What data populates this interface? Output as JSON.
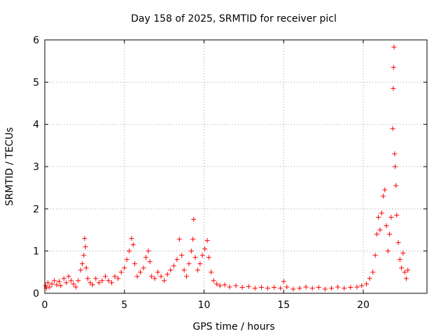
{
  "chart_data": {
    "type": "scatter",
    "title": "Day 158 of 2025, SRMTID for receiver picl",
    "xlabel": "GPS time / hours",
    "ylabel": "SRMTID / TECUs",
    "xlim": [
      0,
      24
    ],
    "ylim": [
      0,
      6
    ],
    "x_ticks": [
      0,
      5,
      10,
      15,
      20
    ],
    "x_tick_labels": [
      "0",
      "5",
      "10",
      "15",
      "20"
    ],
    "y_ticks": [
      0,
      1,
      2,
      3,
      4,
      5,
      6
    ],
    "y_tick_labels": [
      "0",
      "1",
      "2",
      "3",
      "4",
      "5",
      "6"
    ],
    "grid": true,
    "marker": "+",
    "series": [
      {
        "name": "SRMTID",
        "color": "#ff0000",
        "points": [
          [
            0.05,
            0.18
          ],
          [
            0.1,
            0.12
          ],
          [
            0.2,
            0.25
          ],
          [
            0.3,
            0.15
          ],
          [
            0.45,
            0.22
          ],
          [
            0.6,
            0.3
          ],
          [
            0.75,
            0.2
          ],
          [
            0.9,
            0.28
          ],
          [
            1.0,
            0.18
          ],
          [
            1.2,
            0.35
          ],
          [
            1.35,
            0.25
          ],
          [
            1.5,
            0.4
          ],
          [
            1.65,
            0.3
          ],
          [
            1.8,
            0.22
          ],
          [
            1.95,
            0.15
          ],
          [
            2.1,
            0.3
          ],
          [
            2.25,
            0.55
          ],
          [
            2.35,
            0.7
          ],
          [
            2.45,
            0.9
          ],
          [
            2.5,
            1.3
          ],
          [
            2.55,
            1.1
          ],
          [
            2.6,
            0.6
          ],
          [
            2.7,
            0.35
          ],
          [
            2.85,
            0.25
          ],
          [
            3.0,
            0.2
          ],
          [
            3.2,
            0.35
          ],
          [
            3.4,
            0.25
          ],
          [
            3.6,
            0.3
          ],
          [
            3.8,
            0.4
          ],
          [
            4.0,
            0.3
          ],
          [
            4.2,
            0.25
          ],
          [
            4.4,
            0.4
          ],
          [
            4.6,
            0.35
          ],
          [
            4.8,
            0.5
          ],
          [
            5.0,
            0.6
          ],
          [
            5.15,
            0.8
          ],
          [
            5.3,
            1.0
          ],
          [
            5.45,
            1.3
          ],
          [
            5.55,
            1.15
          ],
          [
            5.65,
            0.7
          ],
          [
            5.8,
            0.4
          ],
          [
            6.0,
            0.5
          ],
          [
            6.2,
            0.6
          ],
          [
            6.35,
            0.85
          ],
          [
            6.5,
            1.0
          ],
          [
            6.6,
            0.75
          ],
          [
            6.7,
            0.4
          ],
          [
            6.9,
            0.35
          ],
          [
            7.1,
            0.5
          ],
          [
            7.3,
            0.4
          ],
          [
            7.5,
            0.3
          ],
          [
            7.7,
            0.45
          ],
          [
            7.9,
            0.55
          ],
          [
            8.1,
            0.65
          ],
          [
            8.3,
            0.8
          ],
          [
            8.45,
            1.28
          ],
          [
            8.6,
            0.9
          ],
          [
            8.75,
            0.55
          ],
          [
            8.9,
            0.4
          ],
          [
            9.05,
            0.7
          ],
          [
            9.2,
            1.0
          ],
          [
            9.3,
            1.28
          ],
          [
            9.35,
            1.75
          ],
          [
            9.45,
            0.85
          ],
          [
            9.6,
            0.55
          ],
          [
            9.75,
            0.7
          ],
          [
            9.9,
            0.9
          ],
          [
            10.05,
            1.05
          ],
          [
            10.2,
            1.25
          ],
          [
            10.3,
            0.85
          ],
          [
            10.45,
            0.5
          ],
          [
            10.6,
            0.3
          ],
          [
            10.8,
            0.22
          ],
          [
            11.0,
            0.18
          ],
          [
            11.3,
            0.2
          ],
          [
            11.6,
            0.15
          ],
          [
            12.0,
            0.18
          ],
          [
            12.4,
            0.14
          ],
          [
            12.8,
            0.16
          ],
          [
            13.2,
            0.12
          ],
          [
            13.6,
            0.14
          ],
          [
            14.0,
            0.12
          ],
          [
            14.4,
            0.14
          ],
          [
            14.8,
            0.12
          ],
          [
            15.0,
            0.28
          ],
          [
            15.2,
            0.15
          ],
          [
            15.6,
            0.1
          ],
          [
            16.0,
            0.12
          ],
          [
            16.4,
            0.15
          ],
          [
            16.8,
            0.12
          ],
          [
            17.2,
            0.14
          ],
          [
            17.6,
            0.1
          ],
          [
            18.0,
            0.12
          ],
          [
            18.4,
            0.15
          ],
          [
            18.8,
            0.12
          ],
          [
            19.2,
            0.14
          ],
          [
            19.6,
            0.15
          ],
          [
            19.9,
            0.18
          ],
          [
            20.2,
            0.22
          ],
          [
            20.4,
            0.35
          ],
          [
            20.6,
            0.5
          ],
          [
            20.75,
            0.9
          ],
          [
            20.85,
            1.4
          ],
          [
            20.95,
            1.8
          ],
          [
            21.05,
            1.5
          ],
          [
            21.15,
            1.9
          ],
          [
            21.25,
            2.3
          ],
          [
            21.35,
            2.45
          ],
          [
            21.45,
            1.6
          ],
          [
            21.55,
            1.0
          ],
          [
            21.65,
            1.4
          ],
          [
            21.75,
            1.8
          ],
          [
            21.85,
            3.9
          ],
          [
            21.88,
            4.85
          ],
          [
            21.9,
            5.35
          ],
          [
            21.93,
            5.83
          ],
          [
            21.97,
            3.3
          ],
          [
            22.0,
            3.0
          ],
          [
            22.05,
            2.55
          ],
          [
            22.1,
            1.85
          ],
          [
            22.2,
            1.2
          ],
          [
            22.3,
            0.8
          ],
          [
            22.4,
            0.6
          ],
          [
            22.5,
            0.95
          ],
          [
            22.6,
            0.5
          ],
          [
            22.7,
            0.35
          ],
          [
            22.8,
            0.55
          ]
        ]
      }
    ]
  }
}
